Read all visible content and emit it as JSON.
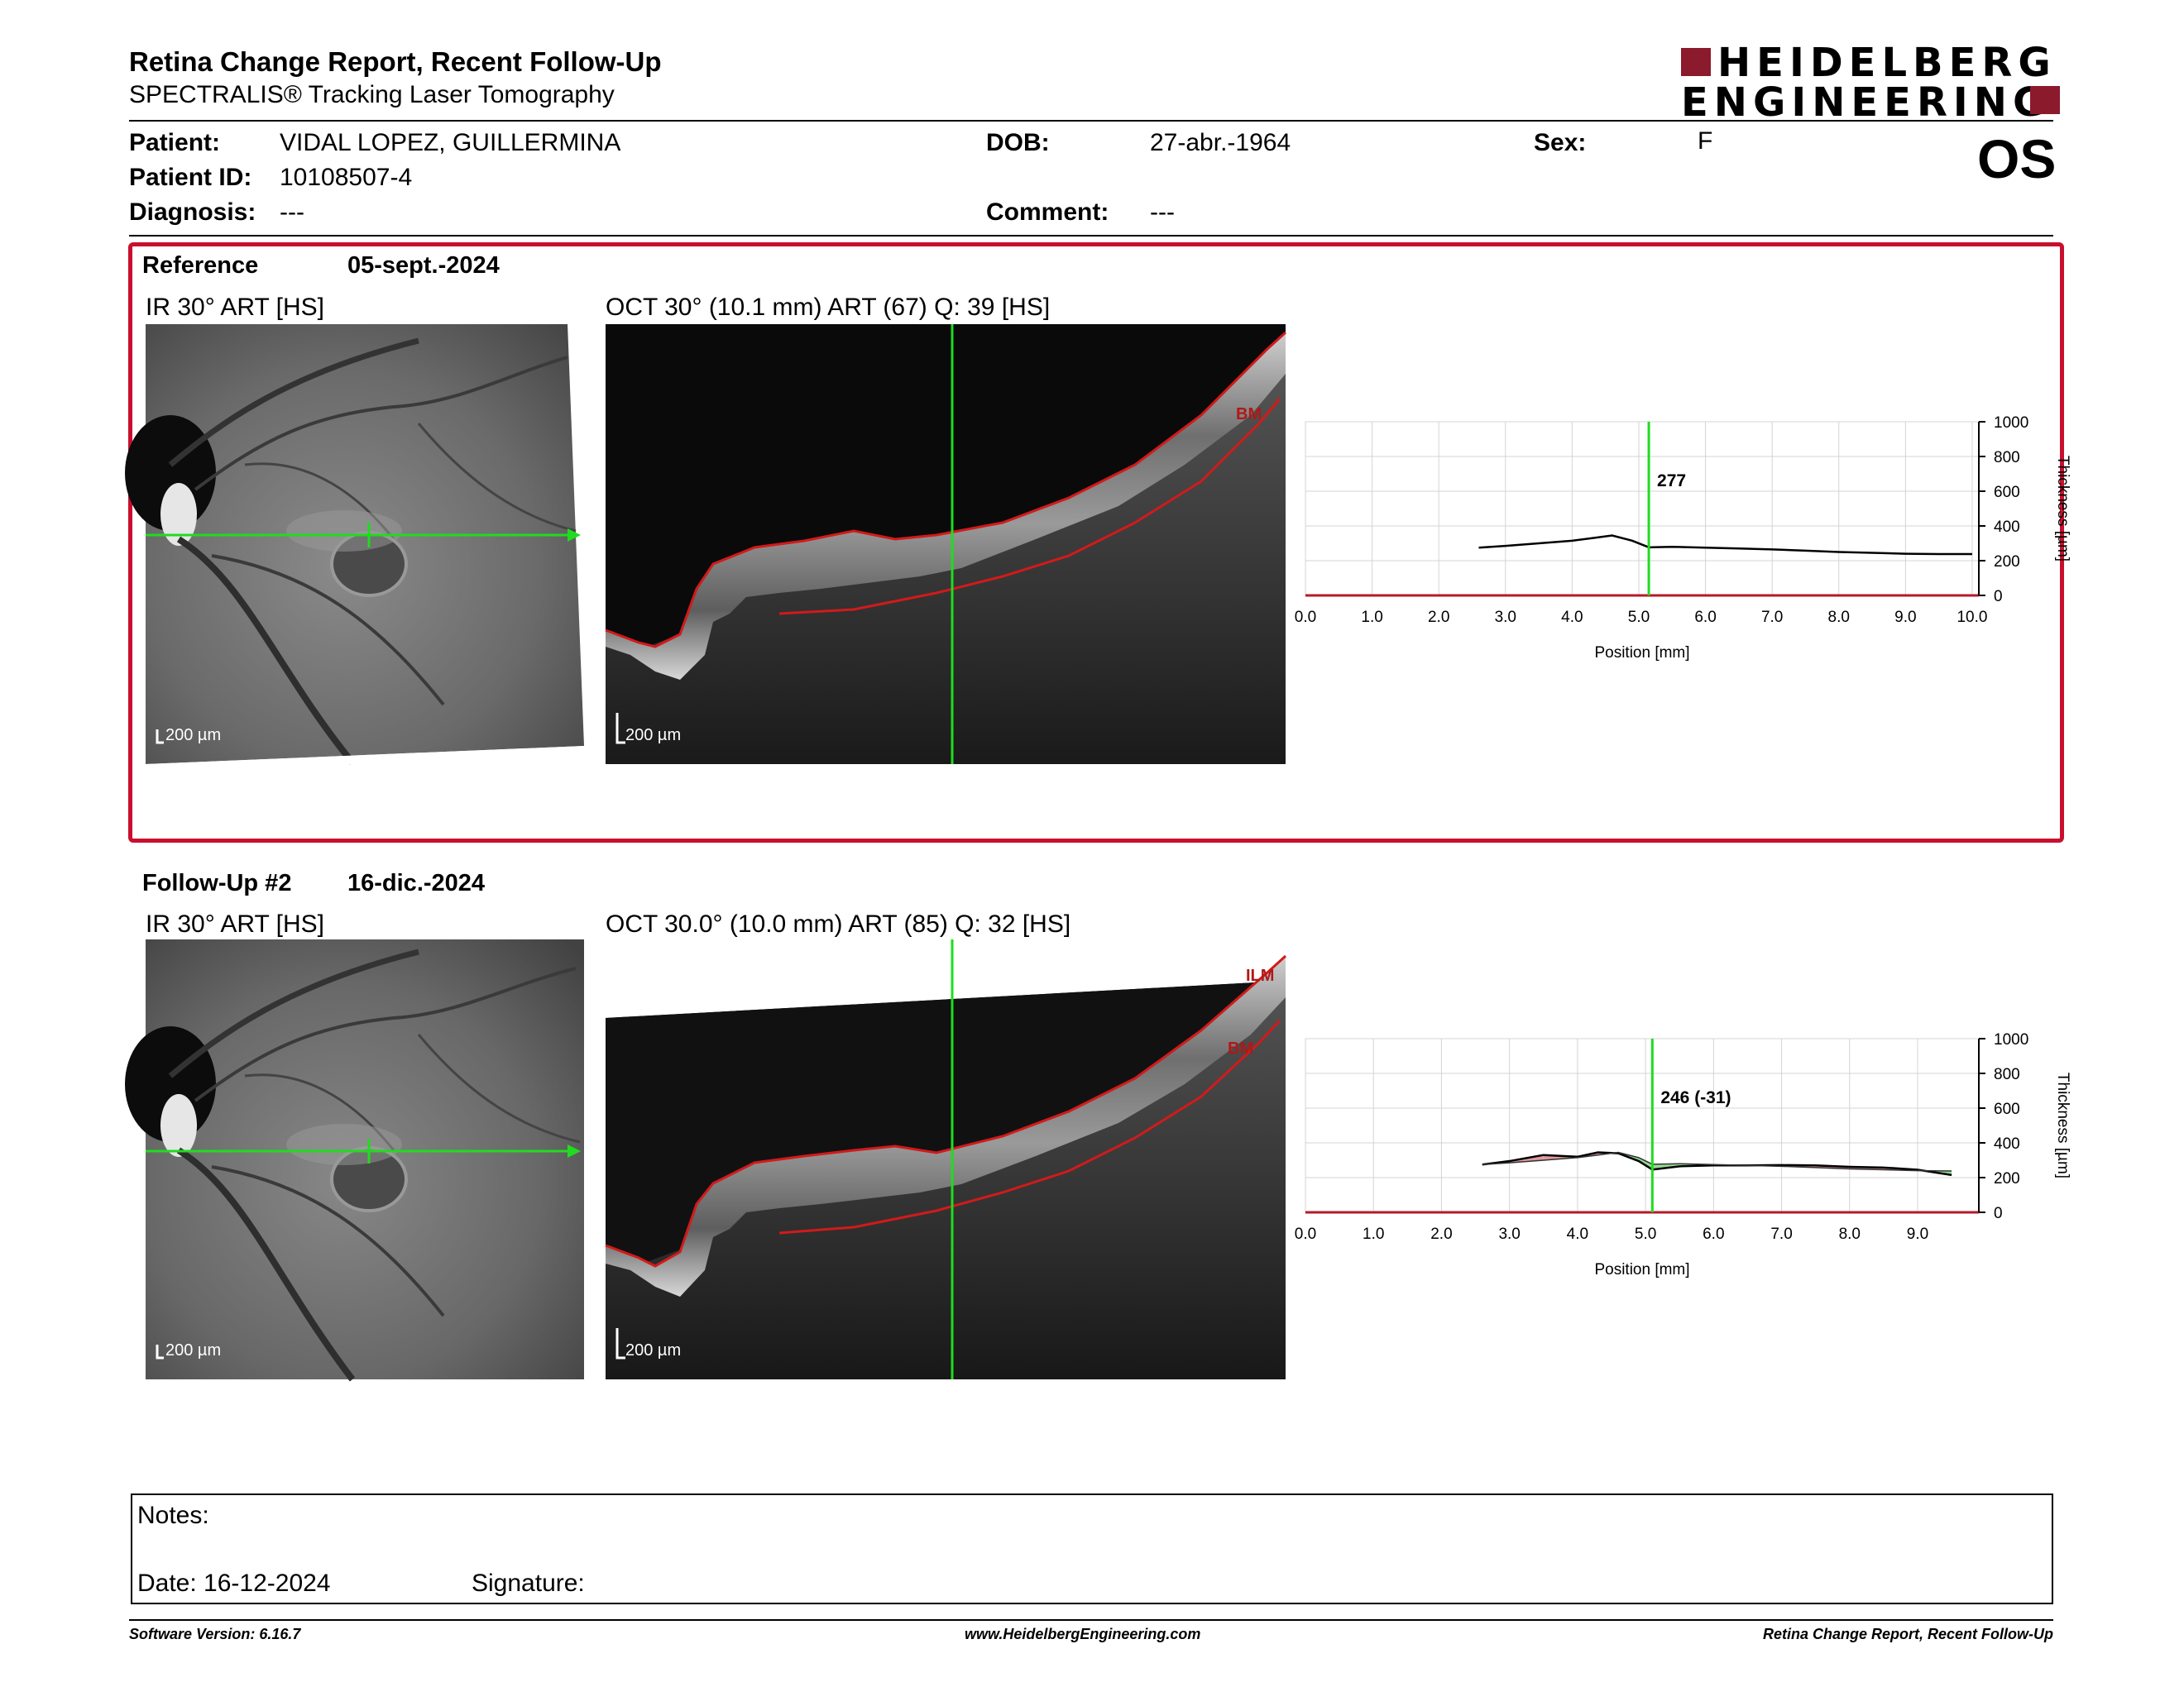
{
  "header": {
    "title": "Retina Change Report, Recent Follow-Up",
    "subtitle": "SPECTRALIS® Tracking Laser Tomography",
    "logo_line1": "HEIDELBERG",
    "logo_line2": "ENGINEERING"
  },
  "patient": {
    "patient_label": "Patient:",
    "patient_value": "VIDAL LOPEZ, GUILLERMINA",
    "id_label": "Patient ID:",
    "id_value": "10108507-4",
    "diagnosis_label": "Diagnosis:",
    "diagnosis_value": "---",
    "dob_label": "DOB:",
    "dob_value": "27-abr.-1964",
    "comment_label": "Comment:",
    "comment_value": "---",
    "sex_label": "Sex:",
    "sex_value": "F",
    "eye": "OS"
  },
  "reference": {
    "label": "Reference",
    "date": "05-sept.-2024",
    "ir_title": "IR 30° ART [HS]",
    "oct_title": "OCT 30° (10.1 mm) ART (67) Q: 39 [HS]",
    "ir_scale": "200 µm",
    "oct_scale": "200 µm",
    "oct_layer_labels": [
      "BM"
    ],
    "thickness_label": "277"
  },
  "followup": {
    "label": "Follow-Up #2",
    "date": "16-dic.-2024",
    "ir_title": "IR 30° ART [HS]",
    "oct_title": "OCT 30.0° (10.0 mm) ART (85) Q: 32 [HS]",
    "ir_scale": "200 µm",
    "oct_scale": "200 µm",
    "oct_layer_labels": [
      "ILM",
      "BM"
    ],
    "thickness_label": "246 (-31)"
  },
  "colors": {
    "reference_frame": "#c8102e",
    "scan_line": "#1fdc1f",
    "segmentation": "#d21a1a",
    "logo_accent": "#8b1a2c",
    "thickness_increase": "#d9888f",
    "thickness_decrease": "#7fd67f"
  },
  "chart_data": [
    {
      "type": "line",
      "xlabel": "Position [mm]",
      "ylabel": "Thickness [µm]",
      "x_ticks": [
        "0.0",
        "1.0",
        "2.0",
        "3.0",
        "4.0",
        "5.0",
        "6.0",
        "7.0",
        "8.0",
        "9.0",
        "10.0"
      ],
      "y_ticks": [
        "0",
        "200",
        "400",
        "600",
        "800",
        "1000"
      ],
      "xlim": [
        0,
        10.1
      ],
      "ylim": [
        0,
        1000
      ],
      "grid": true,
      "cursor_x": 5.15,
      "cursor_label": "277",
      "series": [
        {
          "x": [
            2.6,
            3.0,
            3.5,
            4.0,
            4.3,
            4.6,
            4.9,
            5.15,
            5.5,
            6.0,
            6.5,
            7.0,
            7.5,
            8.0,
            8.5,
            9.0,
            9.5,
            10.0
          ],
          "y": [
            275,
            285,
            300,
            315,
            330,
            345,
            315,
            277,
            280,
            275,
            270,
            265,
            258,
            250,
            245,
            240,
            238,
            238
          ]
        }
      ]
    },
    {
      "type": "line",
      "xlabel": "Position [mm]",
      "ylabel": "Thickness [µm]",
      "x_ticks": [
        "0.0",
        "1.0",
        "2.0",
        "3.0",
        "4.0",
        "5.0",
        "6.0",
        "7.0",
        "8.0",
        "9.0"
      ],
      "y_ticks": [
        "0",
        "200",
        "400",
        "600",
        "800",
        "1000"
      ],
      "xlim": [
        0,
        9.9
      ],
      "ylim": [
        0,
        1000
      ],
      "grid": true,
      "cursor_x": 5.1,
      "cursor_label": "246 (-31)",
      "series": [
        {
          "x": [
            2.6,
            3.0,
            3.5,
            4.0,
            4.3,
            4.6,
            4.9,
            5.1,
            5.5,
            6.0,
            6.5,
            7.0,
            7.5,
            8.0,
            8.5,
            9.0,
            9.5
          ],
          "y": [
            275,
            295,
            330,
            320,
            345,
            340,
            295,
            246,
            265,
            270,
            270,
            272,
            270,
            262,
            258,
            245,
            215
          ]
        },
        {
          "x": [
            2.6,
            3.0,
            3.5,
            4.0,
            4.3,
            4.6,
            4.9,
            5.1,
            5.5,
            6.0,
            6.5,
            7.0,
            7.5,
            8.0,
            8.5,
            9.0,
            9.5
          ],
          "y": [
            275,
            285,
            300,
            315,
            330,
            345,
            315,
            277,
            280,
            275,
            270,
            265,
            258,
            250,
            245,
            240,
            238
          ]
        }
      ]
    }
  ],
  "notes": {
    "notes_label": "Notes:",
    "date_label": "Date: 16-12-2024",
    "signature_label": "Signature:"
  },
  "footer": {
    "software": "Software Version: 6.16.7",
    "website": "www.HeidelbergEngineering.com",
    "report": "Retina Change Report, Recent Follow-Up"
  }
}
